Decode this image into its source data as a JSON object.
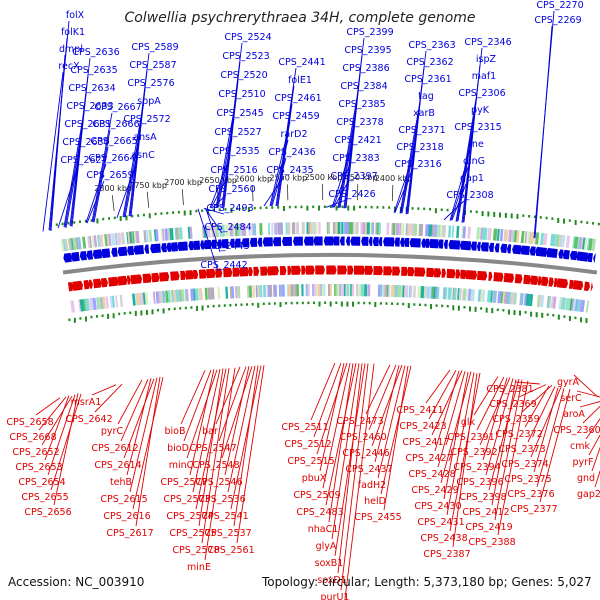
{
  "title": "Colwellia psychrerythraea 34H, complete genome",
  "footer": {
    "accession": "Accession: NC_003910",
    "topology": "Topology: circular; Length: 5,373,180 bp; Genes: 5,027"
  },
  "colors": {
    "forward": "#0000dd",
    "reverse": "#e00000",
    "backbone": "#888888",
    "gc": "#228822"
  },
  "ticks": [
    "2800 kbp",
    "2750 kbp",
    "2700 kbp",
    "2650 kbp",
    "2600 kbp",
    "2550 kbp",
    "2500 kbp",
    "2450 kbp",
    "2400 kbp"
  ],
  "top_labels": [
    "folX",
    "folK1",
    "dmpl",
    "recX",
    "CPS_2667",
    "CPS_2666",
    "CPS_2665",
    "CPS_2664",
    "CPS_2659",
    "CPS_2636",
    "CPS_2635",
    "CPS_2634",
    "CPS_2633",
    "CPS_2631",
    "CPS_2630",
    "CPS_2627",
    "CPS_2589",
    "CPS_2587",
    "CPS_2576",
    "sppA",
    "CPS_2572",
    "ansA",
    "asnC",
    "CPS_2524",
    "CPS_2523",
    "CPS_2520",
    "CPS_2510",
    "CPS_2545",
    "CPS_2527",
    "CPS_2535",
    "CPS_2516",
    "CPS_2560",
    "CPS_2493",
    "CPS_2484",
    "CPS_2443",
    "CPS_2442",
    "CPS_2441",
    "folE1",
    "CPS_2461",
    "CPS_2459",
    "rarD2",
    "CPS_2436",
    "CPS_2435",
    "CPS_2399",
    "CPS_2395",
    "CPS_2386",
    "CPS_2384",
    "CPS_2385",
    "CPS_2378",
    "CPS_2421",
    "CPS_2383",
    "CPS_2397",
    "CPS_2426",
    "CPS_2363",
    "CPS_2362",
    "CPS_2361",
    "tag",
    "xarB",
    "CPS_2371",
    "CPS_2318",
    "CPS_2316",
    "CPS_2346",
    "ispZ",
    "maf1",
    "CPS_2306",
    "pyK",
    "CPS_2315",
    "rne",
    "dinG",
    "gap1",
    "CPS_2308",
    "CPS_2270",
    "CPS_2269"
  ],
  "bottom_labels": [
    "CPS_2658",
    "CPS_2668",
    "CPS_2652",
    "CPS_2653",
    "CPS_2654",
    "CPS_2655",
    "CPS_2656",
    "msrA1",
    "CPS_2642",
    "pyrC",
    "CPS_2612",
    "CPS_2614",
    "tehB",
    "CPS_2615",
    "CPS_2616",
    "CPS_2617",
    "bioB",
    "bioD",
    "minC",
    "CPS_2577",
    "CPS_2573",
    "CPS_2574",
    "CPS_2575",
    "CPS_2578",
    "minE",
    "bar",
    "CPS_2547",
    "CPS_2548",
    "CPS_2546",
    "CPS_2536",
    "CPS_2541",
    "CPS_2537",
    "CPS_2561",
    "CPS_2511",
    "CPS_2512",
    "CPS_2515",
    "pbuX",
    "CPS_2509",
    "CPS_2483",
    "nhaC1",
    "glyA",
    "soxB1",
    "soxD1",
    "purU1",
    "CPS_2495",
    "CPS_2473",
    "CPS_2460",
    "CPS_2446",
    "CPS_2437",
    "fadH2",
    "helD",
    "CPS_2455",
    "CPS_2411",
    "CPS_2423",
    "CPS_2417",
    "CPS_2427",
    "CPS_2428",
    "CPS_2429",
    "CPS_2430",
    "CPS_2431",
    "CPS_2438",
    "CPS_2387",
    "glk",
    "CPS_2391",
    "CPS_2392",
    "CPS_2394",
    "CPS_2396",
    "CPS_2398",
    "CPS_2412",
    "CPS_2419",
    "CPS_2388",
    "CPS_2381",
    "CPS_2369",
    "CPS_2359",
    "CPS_2372",
    "CPS_2373",
    "CPS_2374",
    "CPS_2375",
    "CPS_2376",
    "CPS_2377",
    "gyrA",
    "serC",
    "aroA",
    "CPS_2360",
    "cmk",
    "pyrF",
    "gnd",
    "gap2"
  ]
}
